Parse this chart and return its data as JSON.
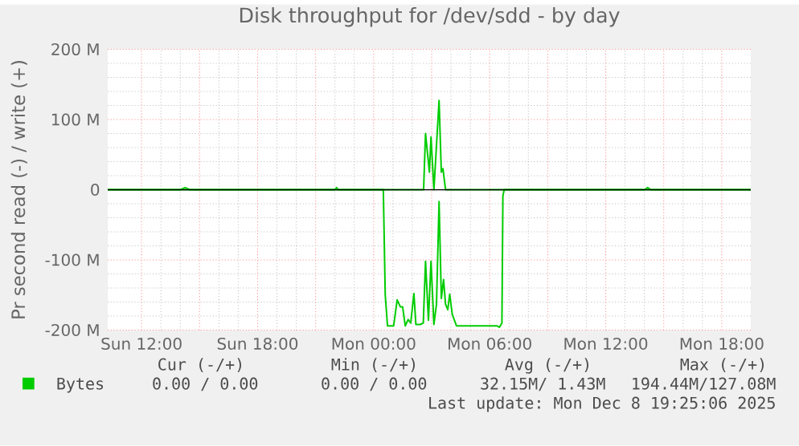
{
  "chart_data": {
    "type": "line",
    "title": "Disk throughput for /dev/sdd - by day",
    "ylabel": "Pr second read (-) / write (+)",
    "xlim": [
      "2025-12-07T10:15",
      "2025-12-08T19:30"
    ],
    "xticks": [
      {
        "value": "2025-12-07T12:00",
        "label": "Sun 12:00"
      },
      {
        "value": "2025-12-07T15:00",
        "label": null
      },
      {
        "value": "2025-12-07T18:00",
        "label": "Sun 18:00"
      },
      {
        "value": "2025-12-07T21:00",
        "label": null
      },
      {
        "value": "2025-12-08T00:00",
        "label": "Mon 00:00"
      },
      {
        "value": "2025-12-08T03:00",
        "label": null
      },
      {
        "value": "2025-12-08T06:00",
        "label": "Mon 06:00"
      },
      {
        "value": "2025-12-08T09:00",
        "label": null
      },
      {
        "value": "2025-12-08T12:00",
        "label": "Mon 12:00"
      },
      {
        "value": "2025-12-08T15:00",
        "label": null
      },
      {
        "value": "2025-12-08T18:00",
        "label": "Mon 18:00"
      }
    ],
    "ylim": [
      -200,
      200
    ],
    "yticks": [
      {
        "value": -200,
        "label": "-200 M"
      },
      {
        "value": -100,
        "label": "-100 M"
      },
      {
        "value": 0,
        "label": "0"
      },
      {
        "value": 100,
        "label": "100 M"
      },
      {
        "value": 200,
        "label": "200 M"
      }
    ],
    "grid": true,
    "legend": "bottom",
    "marker": "none",
    "line_style": "solid",
    "series": [
      {
        "name": "Bytes",
        "color": "#00cc00",
        "x": [
          "2025-12-07T10:15",
          "2025-12-07T14:00",
          "2025-12-07T14:15",
          "2025-12-07T14:30",
          "2025-12-07T22:00",
          "2025-12-07T22:05",
          "2025-12-07T22:10",
          "2025-12-08T02:35",
          "2025-12-08T02:41",
          "2025-12-08T02:53",
          "2025-12-08T02:58",
          "2025-12-08T03:07",
          "2025-12-08T03:23",
          "2025-12-08T03:30",
          "2025-12-08T03:35",
          "2025-12-08T03:43",
          "2025-12-08T14:00",
          "2025-12-08T14:10",
          "2025-12-08T14:20",
          "2025-12-08T19:30"
        ],
        "values": [
          0,
          0,
          3,
          0,
          0,
          3,
          0,
          0,
          80,
          25,
          75,
          0,
          127,
          25,
          30,
          0,
          0,
          3,
          0,
          0
        ]
      },
      {
        "color": "#00cc00",
        "x": [
          "2025-12-07T10:15",
          "2025-12-08T00:30",
          "2025-12-08T00:36",
          "2025-12-08T00:43",
          "2025-12-08T01:02",
          "2025-12-08T01:13",
          "2025-12-08T01:23",
          "2025-12-08T01:30",
          "2025-12-08T01:38",
          "2025-12-08T01:47",
          "2025-12-08T01:55",
          "2025-12-08T02:00",
          "2025-12-08T02:05",
          "2025-12-08T02:11",
          "2025-12-08T02:25",
          "2025-12-08T02:34",
          "2025-12-08T02:41",
          "2025-12-08T02:50",
          "2025-12-08T02:58",
          "2025-12-08T03:07",
          "2025-12-08T03:15",
          "2025-12-08T03:23",
          "2025-12-08T03:30",
          "2025-12-08T03:37",
          "2025-12-08T03:43",
          "2025-12-08T03:50",
          "2025-12-08T03:56",
          "2025-12-08T04:04",
          "2025-12-08T04:17",
          "2025-12-08T06:22",
          "2025-12-08T06:30",
          "2025-12-08T06:38",
          "2025-12-08T06:41",
          "2025-12-08T06:45",
          "2025-12-08T19:30"
        ],
        "values": [
          0,
          0,
          -150,
          -194,
          -194,
          -157,
          -167,
          -167,
          -194,
          -185,
          -190,
          -169,
          -148,
          -192,
          -192,
          -190,
          -102,
          -186,
          -102,
          -192,
          -163,
          -17,
          -155,
          -128,
          -163,
          -171,
          -149,
          -178,
          -194,
          -194,
          -196,
          -190,
          -9,
          0,
          0
        ]
      }
    ],
    "annotations": [
      "Cur (-/+)",
      "Min (-/+)",
      "Avg (-/+)",
      "Max (-/+)",
      "0.00 / 0.00",
      "0.00 / 0.00",
      "32.15M/ 1.43M",
      "194.44M/127.08M",
      "Last update: Mon Dec 8 19:25:06 2025"
    ]
  }
}
